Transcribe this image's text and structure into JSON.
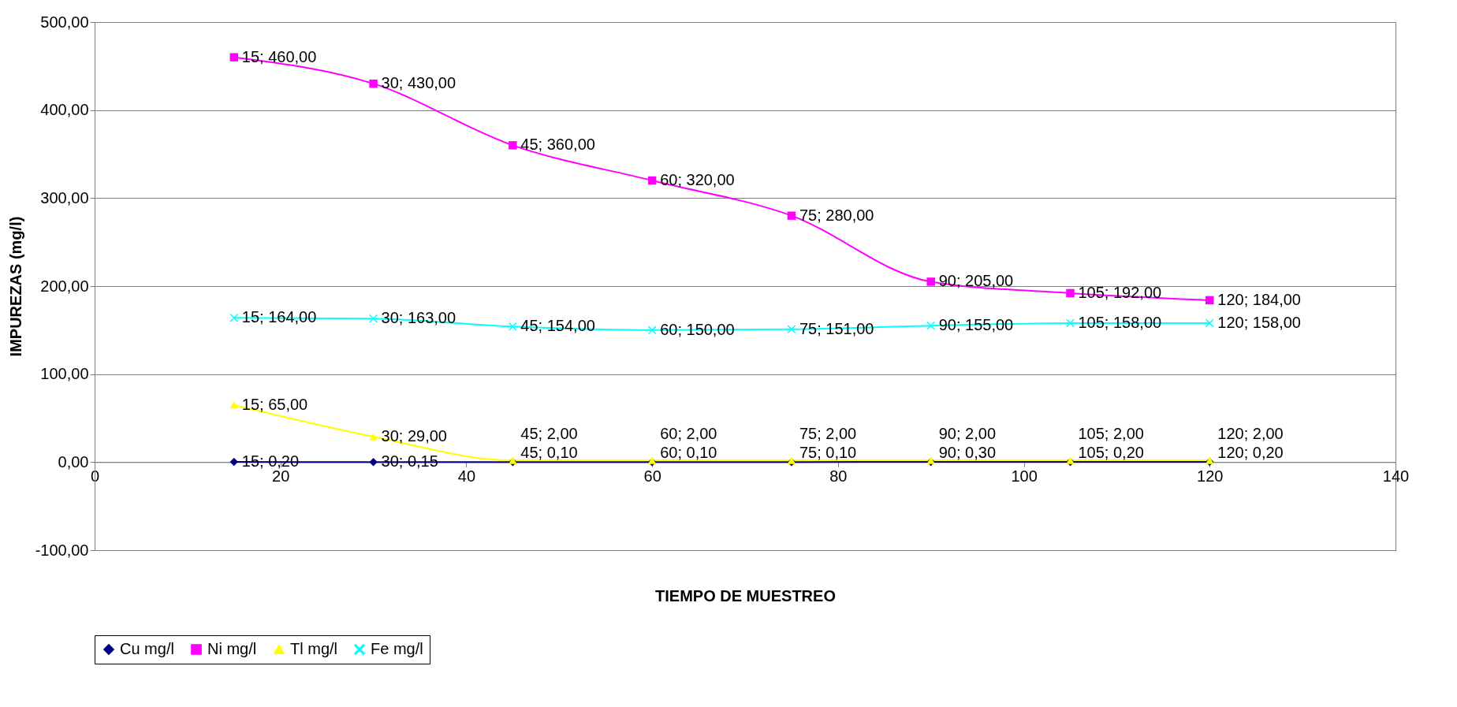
{
  "chart_data": {
    "type": "line",
    "xlabel": "TIEMPO DE MUESTREO",
    "ylabel": "IMPUREZAS (mg/l)",
    "x": [
      15,
      30,
      45,
      60,
      75,
      90,
      105,
      120
    ],
    "series": [
      {
        "name": "Cu mg/l",
        "color": "#000080",
        "marker": "diamond",
        "values": [
          0.2,
          0.15,
          0.1,
          0.1,
          0.1,
          0.3,
          0.2,
          0.2
        ],
        "value_labels": [
          "15; 0,20",
          "30; 0,15",
          "45; 0,10",
          "60; 0,10",
          "75; 0,10",
          "90; 0,30",
          "105; 0,20",
          "120; 0,20"
        ]
      },
      {
        "name": "Ni mg/l",
        "color": "#ff00ff",
        "marker": "square",
        "values": [
          460,
          430,
          360,
          320,
          280,
          205,
          192,
          184
        ],
        "value_labels": [
          "15; 460,00",
          "30; 430,00",
          "45; 360,00",
          "60; 320,00",
          "75; 280,00",
          "90; 205,00",
          "105; 192,00",
          "120; 184,00"
        ]
      },
      {
        "name": "Tl mg/l",
        "color": "#ffff00",
        "marker": "triangle",
        "values": [
          65,
          29,
          2,
          2,
          2,
          2,
          2,
          2
        ],
        "value_labels": [
          "15; 65,00",
          "30; 29,00",
          "45; 2,00",
          "60; 2,00",
          "75; 2,00",
          "90; 2,00",
          "105; 2,00",
          "120; 2,00"
        ]
      },
      {
        "name": "Fe mg/l",
        "color": "#00ffff",
        "marker": "cross",
        "values": [
          164,
          163,
          154,
          150,
          151,
          155,
          158,
          158
        ],
        "value_labels": [
          "15; 164,00",
          "30; 163,00",
          "45; 154,00",
          "60; 150,00",
          "75; 151,00",
          "90; 155,00",
          "105; 158,00",
          "120; 158,00"
        ]
      }
    ],
    "xlim": [
      0,
      140
    ],
    "xticks": [
      0,
      20,
      40,
      60,
      80,
      100,
      120,
      140
    ],
    "ylim": [
      -100,
      500
    ],
    "yticks": [
      {
        "value": -100,
        "label": "-100,00"
      },
      {
        "value": 0,
        "label": "0,00"
      },
      {
        "value": 100,
        "label": "100,00"
      },
      {
        "value": 200,
        "label": "200,00"
      },
      {
        "value": 300,
        "label": "300,00"
      },
      {
        "value": 400,
        "label": "400,00"
      },
      {
        "value": 500,
        "label": "500,00"
      }
    ],
    "grid": "y",
    "legend": "bottom",
    "line_style": "solid"
  }
}
